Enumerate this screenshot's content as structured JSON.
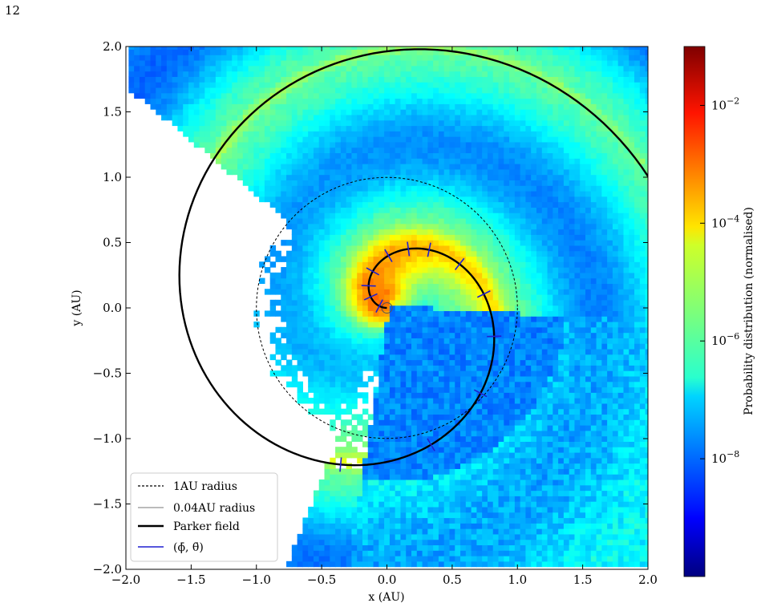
{
  "page_number": "12",
  "chart_data": {
    "type": "heatmap",
    "xlabel": "x (AU)",
    "ylabel": "y (AU)",
    "xlim": [
      -2.0,
      2.0
    ],
    "ylim": [
      -2.0,
      2.0
    ],
    "x_ticks": [
      -2.0,
      -1.5,
      -1.0,
      -0.5,
      0.0,
      0.5,
      1.0,
      1.5,
      2.0
    ],
    "y_ticks": [
      -2.0,
      -1.5,
      -1.0,
      -0.5,
      0.0,
      0.5,
      1.0,
      1.5,
      2.0
    ],
    "x_tick_labels": [
      "−2.0",
      "−1.5",
      "−1.0",
      "−0.5",
      "0.0",
      "0.5",
      "1.0",
      "1.5",
      "2.0"
    ],
    "y_tick_labels": [
      "−2.0",
      "−1.5",
      "−1.0",
      "−0.5",
      "0.0",
      "0.5",
      "1.0",
      "1.5",
      "2.0"
    ],
    "colorbar": {
      "label": "Probability distribution (normalised)",
      "scale": "log",
      "colormap": "jet",
      "range": [
        1e-10,
        0.1
      ],
      "ticks": [
        1e-08,
        1e-06,
        0.0001,
        0.01
      ],
      "tick_bases": [
        "10",
        "10",
        "10",
        "10"
      ],
      "tick_exponents": [
        "−8",
        "−6",
        "−4",
        "−2"
      ]
    },
    "density_model": {
      "spiral_peak_log10": -3.0,
      "ridge_width_au": 0.22,
      "ambient_log10_at_1au": -6.5,
      "inner_sw_quadrant_log10": -7.7,
      "empty_region": "west-southwest, outside about 0.9 AU",
      "bins_per_axis": 96
    },
    "one_au_circle": {
      "radius_au": 1.0
    },
    "inner_circle": {
      "radius_au": 0.04
    },
    "parker_field": {
      "b_au": 0.25,
      "start_angle_deg": 180,
      "r_max_au": 2.3,
      "color": "#000000"
    },
    "phi_theta_markers": {
      "color": "#1f1fd0",
      "radii_au": [
        0.06,
        0.15,
        0.22,
        0.3,
        0.4,
        0.48,
        0.55,
        0.65,
        0.75,
        0.85,
        0.97,
        1.1,
        1.25
      ]
    },
    "legend": {
      "position": "lower-left",
      "entries": [
        {
          "label": "1AU radius",
          "style": "dashed"
        },
        {
          "label": "0.04AU radius",
          "style": "thin-gray"
        },
        {
          "label": "Parker field",
          "style": "thick-black"
        },
        {
          "label": "(ϕ̄, θ̄)",
          "style": "blue"
        }
      ]
    }
  }
}
